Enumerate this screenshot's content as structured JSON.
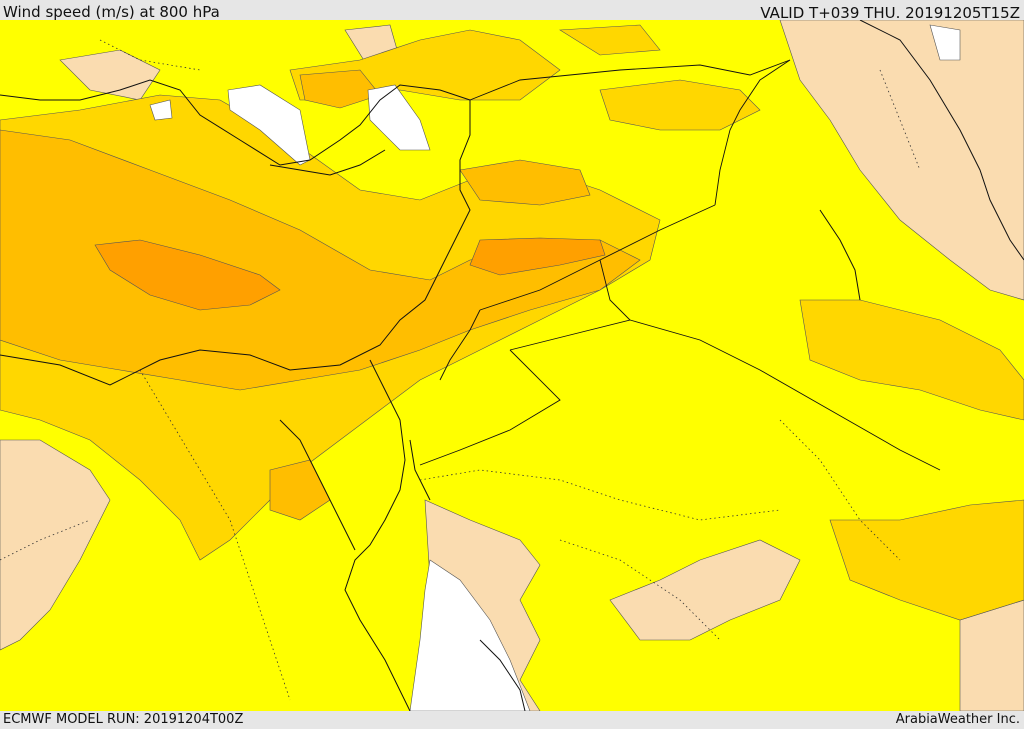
{
  "header": {
    "title": "Wind speed (m/s) at 800 hPa",
    "valid": "VALID T+039 THU. 20191205T15Z"
  },
  "footer": {
    "model_run": "ECMWF MODEL RUN: 20191204T00Z",
    "credit": "ArabiaWeather Inc."
  },
  "colors": {
    "level_low": "#fadcb0",
    "level_1": "#ffff00",
    "level_2": "#ffd700",
    "level_3": "#ffbe00",
    "level_4": "#ffa000",
    "sea_masked": "#ffffff",
    "header_bg": "#e6e6e6"
  }
}
